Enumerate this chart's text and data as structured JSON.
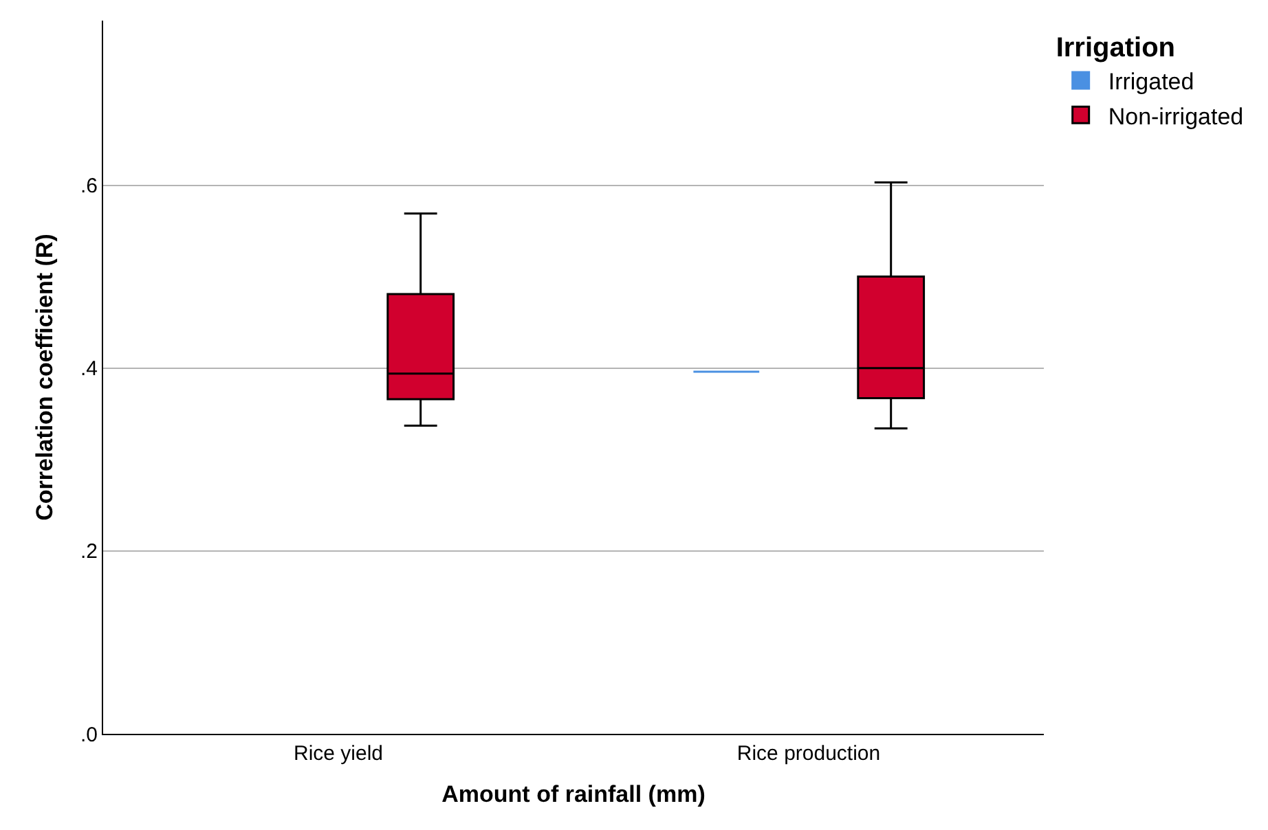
{
  "chart_data": {
    "type": "box",
    "xlabel": "Amount of rainfall (mm)",
    "ylabel": "Correlation coefficient (R)",
    "legend_title": "Irrigation",
    "categories": [
      "Rice yield",
      "Rice production"
    ],
    "series": [
      {
        "name": "Irrigated",
        "color": "#4a90e2",
        "boxes": [
          null,
          {
            "low": 0.396,
            "q1": 0.396,
            "median": 0.396,
            "q3": 0.396,
            "high": 0.396
          }
        ]
      },
      {
        "name": "Non-irrigated",
        "color": "#d1002e",
        "boxes": [
          {
            "low": 0.337,
            "q1": 0.366,
            "median": 0.394,
            "q3": 0.481,
            "high": 0.569
          },
          {
            "low": 0.334,
            "q1": 0.367,
            "median": 0.4,
            "q3": 0.5,
            "high": 0.603
          }
        ]
      }
    ],
    "ylim": [
      0,
      0.78
    ],
    "yticks": [
      {
        "value": 0,
        "label": ".0"
      },
      {
        "value": 0.2,
        "label": ".2"
      },
      {
        "value": 0.4,
        "label": ".4"
      },
      {
        "value": 0.6,
        "label": ".6"
      }
    ],
    "grid": "y",
    "legend": "top right"
  }
}
